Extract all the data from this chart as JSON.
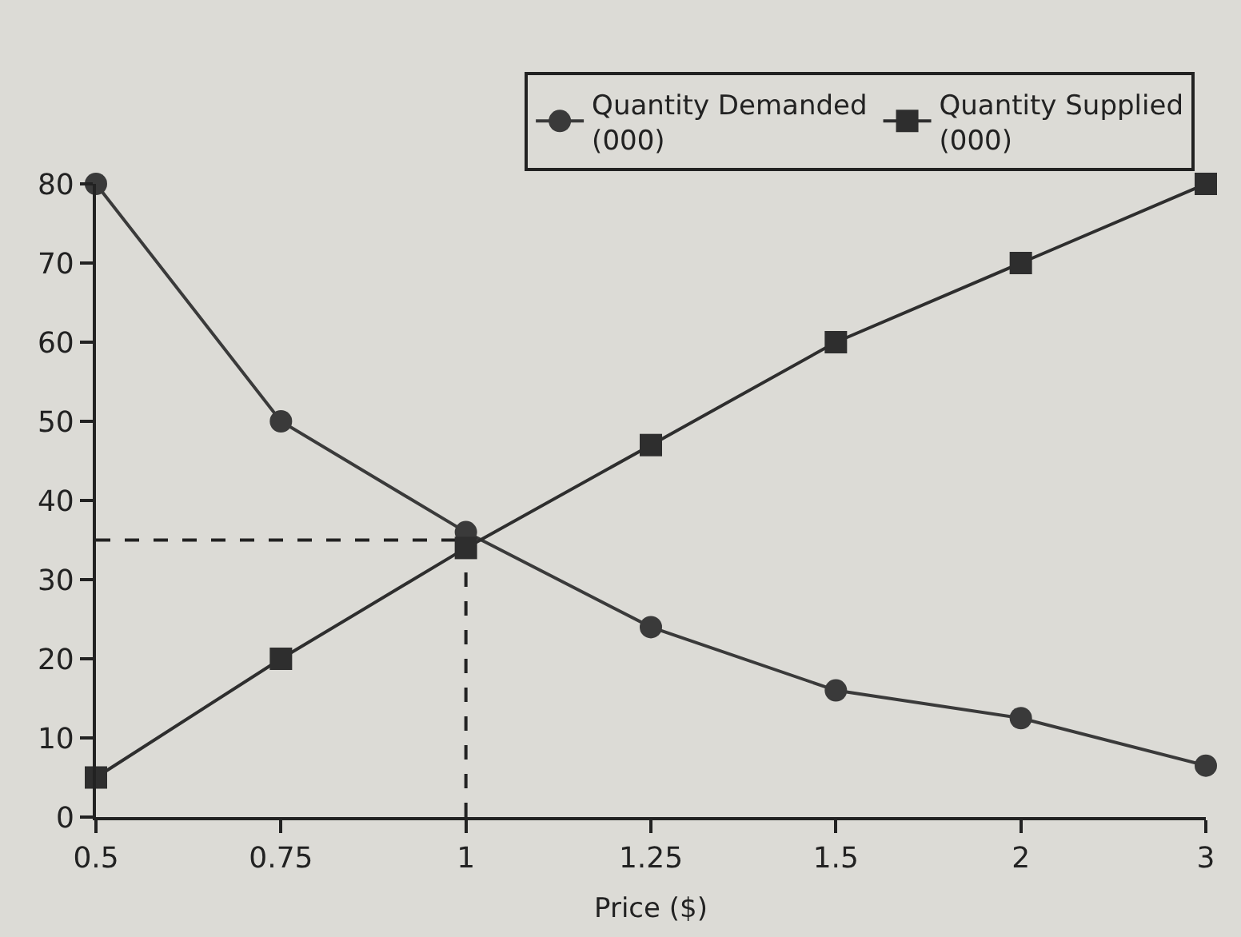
{
  "chart_data": {
    "type": "line",
    "xlabel": "Price ($)",
    "categories": [
      "0.5",
      "0.75",
      "1",
      "1.25",
      "1.5",
      "2",
      "3"
    ],
    "series": [
      {
        "name": "Quantity Demanded\n(000)",
        "color": "#3a3a3a",
        "marker": "circle",
        "values": [
          80,
          50,
          36,
          24,
          16,
          12.5,
          6.5
        ]
      },
      {
        "name": "Quantity Supplied\n(000)",
        "color": "#2e2e2e",
        "marker": "square",
        "values": [
          5,
          20,
          34,
          47,
          60,
          70,
          80
        ]
      }
    ],
    "ylim": [
      0,
      80
    ],
    "yticks": [
      0,
      10,
      20,
      30,
      40,
      50,
      60,
      70,
      80
    ],
    "ref_lines": [
      {
        "axis": "y",
        "value": 35,
        "line_style": "dashed",
        "color": "#222222"
      },
      {
        "axis": "x",
        "value": "1",
        "line_style": "dashed",
        "color": "#222222"
      }
    ],
    "grid": false,
    "legend": "top",
    "line_style": "solid"
  }
}
